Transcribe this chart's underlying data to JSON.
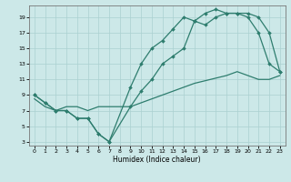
{
  "xlabel": "Humidex (Indice chaleur)",
  "xlim": [
    -0.5,
    23.5
  ],
  "ylim": [
    2.5,
    20.5
  ],
  "xticks": [
    0,
    1,
    2,
    3,
    4,
    5,
    6,
    7,
    8,
    9,
    10,
    11,
    12,
    13,
    14,
    15,
    16,
    17,
    18,
    19,
    20,
    21,
    22,
    23
  ],
  "yticks": [
    3,
    5,
    7,
    9,
    11,
    13,
    15,
    17,
    19
  ],
  "bg_color": "#cce8e8",
  "grid_color": "#aad0d0",
  "line_color": "#2e7d6e",
  "line1_x": [
    0,
    1,
    2,
    3,
    4,
    5,
    6,
    7,
    9,
    10,
    11,
    12,
    13,
    14,
    15,
    16,
    17,
    18,
    19,
    20,
    21,
    22,
    23
  ],
  "line1_y": [
    9,
    8,
    7,
    7,
    6,
    6,
    4,
    3,
    10,
    13,
    15,
    16,
    17.5,
    19,
    18.5,
    19.5,
    20,
    19.5,
    19.5,
    19,
    17,
    13,
    12
  ],
  "line2_x": [
    0,
    1,
    2,
    3,
    4,
    5,
    6,
    7,
    9,
    10,
    11,
    12,
    13,
    14,
    15,
    16,
    17,
    18,
    19,
    20,
    21,
    22,
    23
  ],
  "line2_y": [
    9,
    8,
    7,
    7,
    6,
    6,
    4,
    3,
    7.5,
    9.5,
    11,
    13,
    14,
    15,
    18.5,
    18,
    19,
    19.5,
    19.5,
    19.5,
    19,
    17,
    12
  ],
  "line3_x": [
    0,
    1,
    2,
    3,
    4,
    5,
    6,
    7,
    9,
    12,
    15,
    18,
    19,
    20,
    21,
    22,
    23
  ],
  "line3_y": [
    8.5,
    7.5,
    7,
    7.5,
    7.5,
    7,
    7.5,
    7.5,
    7.5,
    9,
    10.5,
    11.5,
    12,
    11.5,
    11,
    11,
    11.5
  ]
}
